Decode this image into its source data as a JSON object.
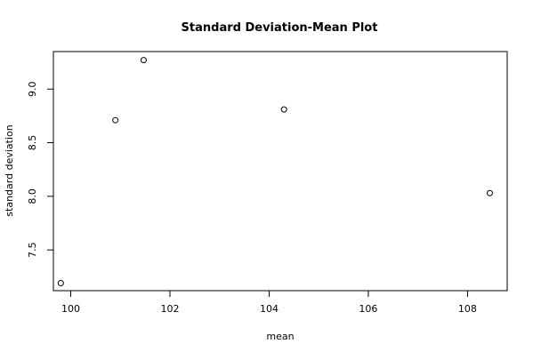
{
  "chart_data": {
    "type": "scatter",
    "title": "Standard Deviation-Mean Plot",
    "xlabel": "mean",
    "ylabel": "standard deviation",
    "xlim": [
      99.65,
      108.8
    ],
    "ylim": [
      7.12,
      9.35
    ],
    "x_ticks": [
      100,
      102,
      104,
      106,
      108
    ],
    "x_tick_labels": [
      "100",
      "102",
      "104",
      "106",
      "108"
    ],
    "y_ticks": [
      7.5,
      8.0,
      8.5,
      9.0
    ],
    "y_tick_labels": [
      "7.5",
      "8.0",
      "8.5",
      "9.0"
    ],
    "grid": false,
    "marker": "open-circle",
    "points": [
      {
        "x": 99.8,
        "y": 7.19
      },
      {
        "x": 100.9,
        "y": 8.71
      },
      {
        "x": 101.47,
        "y": 9.27
      },
      {
        "x": 104.3,
        "y": 8.81
      },
      {
        "x": 108.45,
        "y": 8.03
      }
    ]
  }
}
